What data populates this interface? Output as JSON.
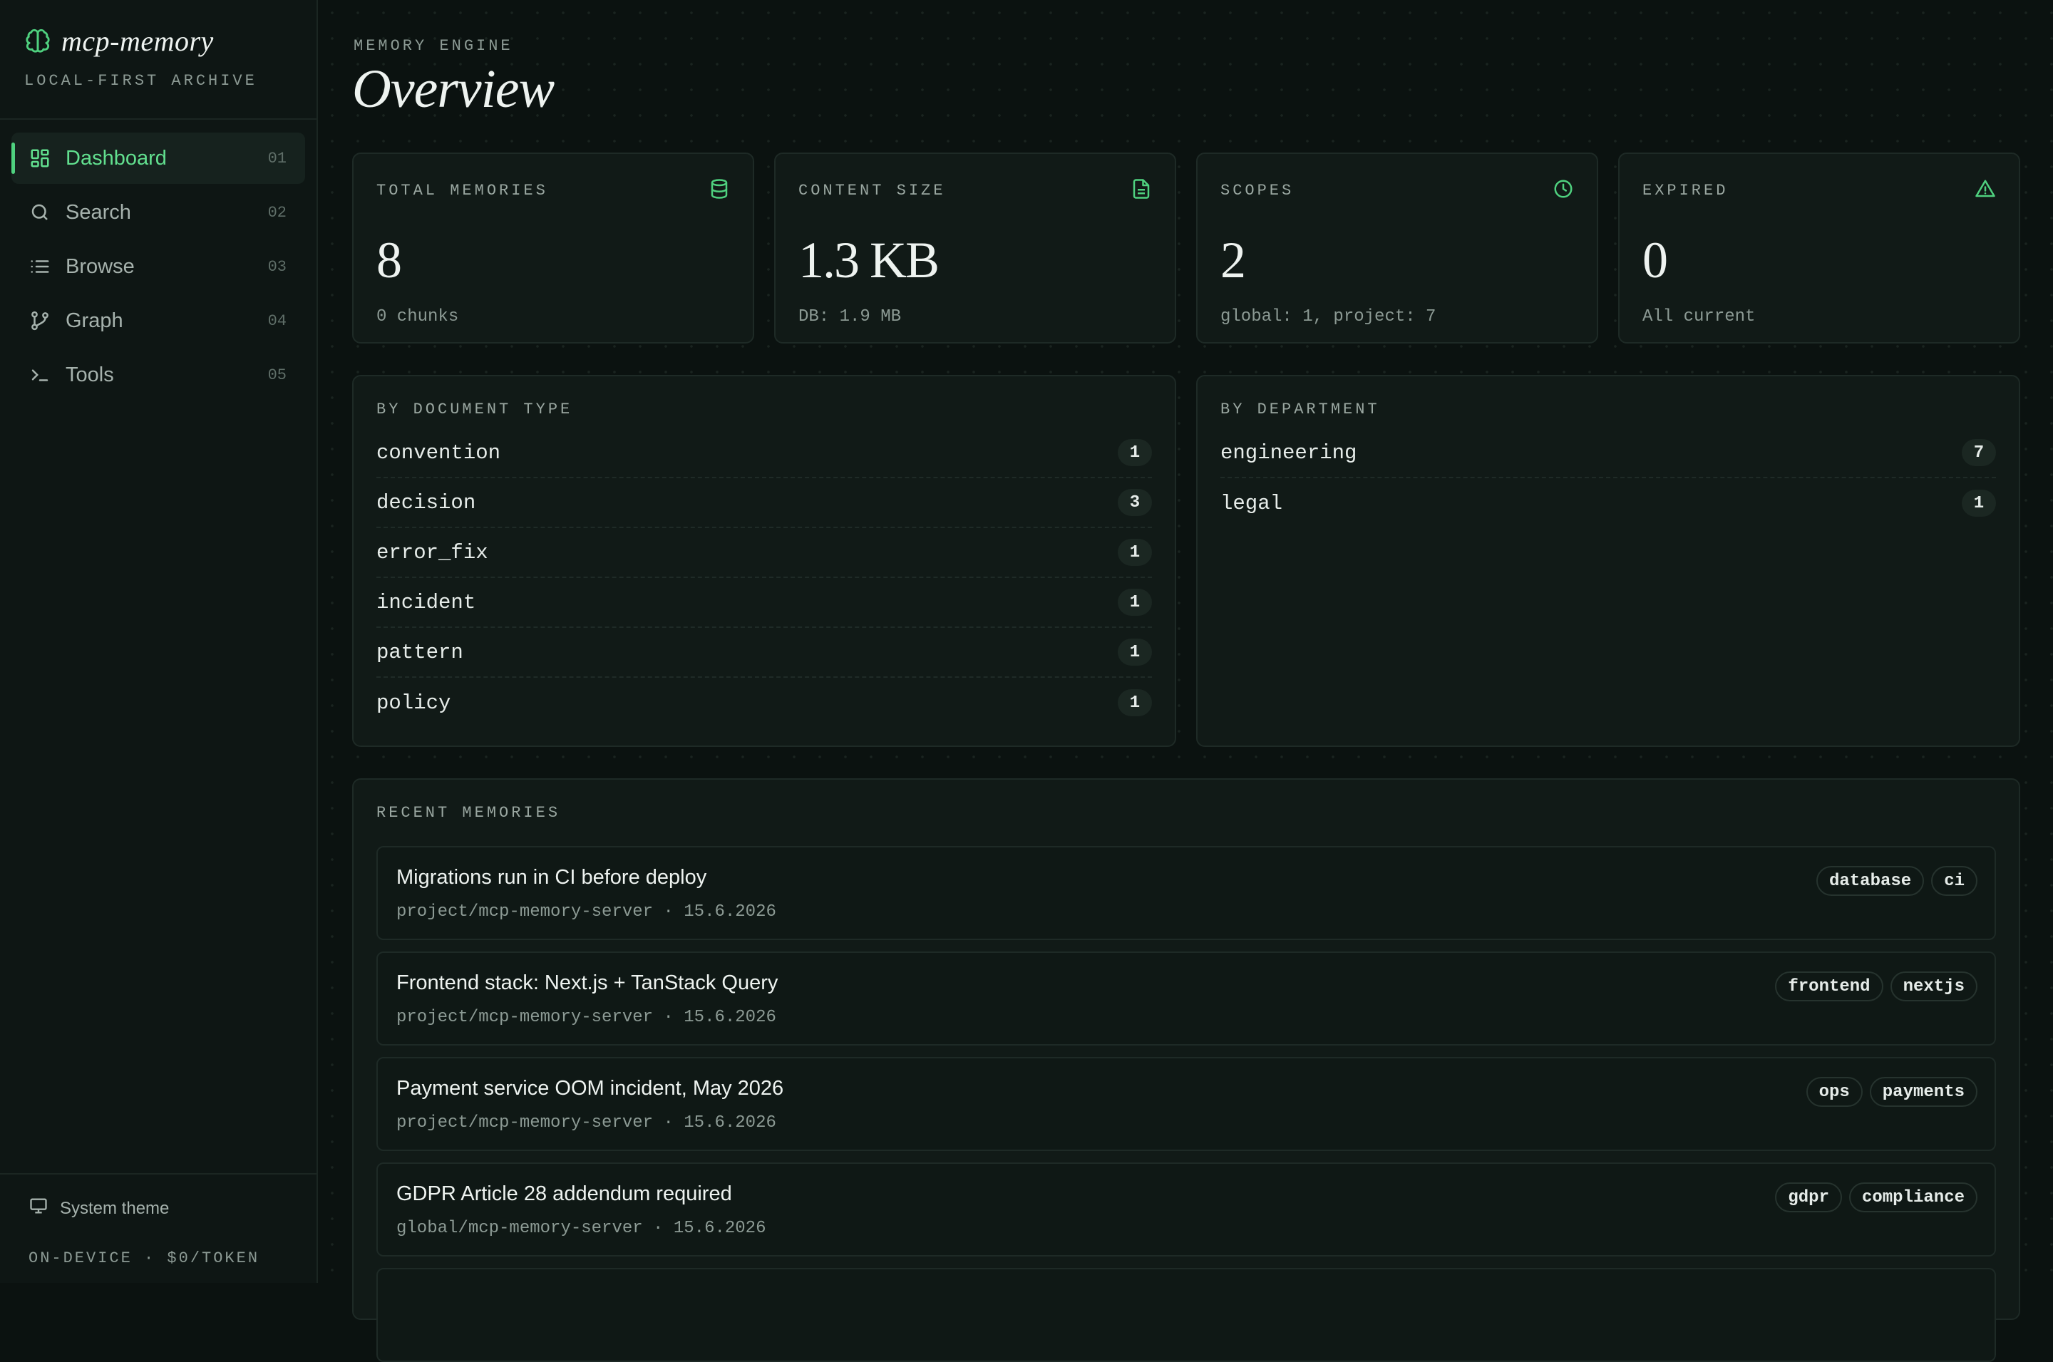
{
  "brand": {
    "name": "mcp-memory",
    "subtitle": "LOCAL-FIRST ARCHIVE",
    "icon": "brain-icon"
  },
  "nav": [
    {
      "label": "Dashboard",
      "num": "01",
      "icon": "dashboard-icon",
      "active": true
    },
    {
      "label": "Search",
      "num": "02",
      "icon": "search-icon"
    },
    {
      "label": "Browse",
      "num": "03",
      "icon": "list-icon"
    },
    {
      "label": "Graph",
      "num": "04",
      "icon": "graph-icon"
    },
    {
      "label": "Tools",
      "num": "05",
      "icon": "terminal-icon"
    }
  ],
  "footer": {
    "theme_label": "System theme",
    "meta": "ON-DEVICE · $0/TOKEN"
  },
  "header": {
    "eyebrow": "MEMORY ENGINE",
    "title": "Overview"
  },
  "stats": [
    {
      "label": "TOTAL MEMORIES",
      "value": "8",
      "sub": "0 chunks",
      "icon": "database-icon"
    },
    {
      "label": "CONTENT SIZE",
      "value": "1.3 KB",
      "sub": "DB: 1.9 MB",
      "icon": "file-icon"
    },
    {
      "label": "SCOPES",
      "value": "2",
      "sub": "global: 1, project: 7",
      "icon": "clock-icon"
    },
    {
      "label": "EXPIRED",
      "value": "0",
      "sub": "All current",
      "icon": "warning-icon"
    }
  ],
  "by_type": {
    "label": "BY DOCUMENT TYPE",
    "rows": [
      {
        "label": "convention",
        "count": "1"
      },
      {
        "label": "decision",
        "count": "3"
      },
      {
        "label": "error_fix",
        "count": "1"
      },
      {
        "label": "incident",
        "count": "1"
      },
      {
        "label": "pattern",
        "count": "1"
      },
      {
        "label": "policy",
        "count": "1"
      }
    ]
  },
  "by_department": {
    "label": "BY DEPARTMENT",
    "rows": [
      {
        "label": "engineering",
        "count": "7"
      },
      {
        "label": "legal",
        "count": "1"
      }
    ]
  },
  "recent": {
    "label": "RECENT MEMORIES",
    "items": [
      {
        "title": "Migrations run in CI before deploy",
        "meta": "project/mcp-memory-server · 15.6.2026",
        "tags": [
          "database",
          "ci"
        ]
      },
      {
        "title": "Frontend stack: Next.js + TanStack Query",
        "meta": "project/mcp-memory-server · 15.6.2026",
        "tags": [
          "frontend",
          "nextjs"
        ]
      },
      {
        "title": "Payment service OOM incident, May 2026",
        "meta": "project/mcp-memory-server · 15.6.2026",
        "tags": [
          "ops",
          "payments"
        ]
      },
      {
        "title": "GDPR Article 28 addendum required",
        "meta": "global/mcp-memory-server · 15.6.2026",
        "tags": [
          "gdpr",
          "compliance"
        ]
      }
    ]
  },
  "colors": {
    "accent": "#4fd17f",
    "background": "#0b1210",
    "card": "#111a17"
  }
}
